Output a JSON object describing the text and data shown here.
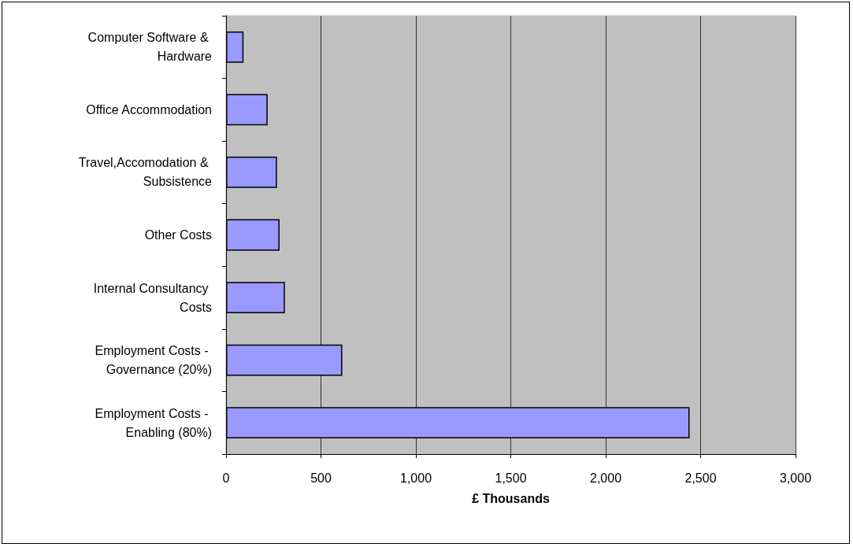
{
  "chart_data": {
    "type": "bar",
    "orientation": "horizontal",
    "xlabel": "£ Thousands",
    "categories": [
      "Computer Software & Hardware",
      "Office Accommodation",
      "Travel,Accomodation & Subsistence",
      "Other Costs",
      "Internal Consultancy Costs",
      "Employment Costs - Governance (20%)",
      "Employment Costs - Enabling (80%)"
    ],
    "values": [
      92,
      219,
      268,
      282,
      310,
      612,
      2442
    ],
    "color": "#9999ff",
    "xlim": [
      0,
      3000
    ],
    "xticks": [
      0,
      500,
      {
        "value": 1000,
        "label": "1,000"
      },
      {
        "value": 1500,
        "label": "1,500"
      },
      {
        "value": 2000,
        "label": "2,000"
      },
      {
        "value": 2500,
        "label": "2,500"
      },
      {
        "value": 3000,
        "label": "3,000"
      }
    ],
    "grid": "x"
  }
}
